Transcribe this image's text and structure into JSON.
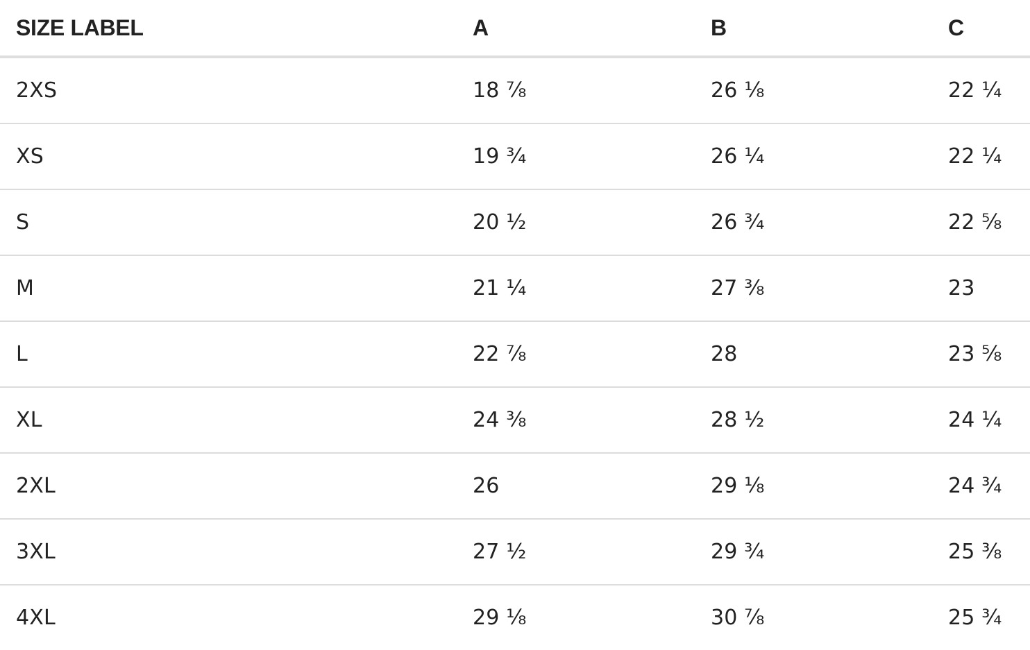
{
  "size_chart": {
    "headers": [
      "SIZE LABEL",
      "A",
      "B",
      "C"
    ],
    "rows": [
      [
        "2XS",
        "18 ⅞",
        "26 ⅛",
        "22 ¼"
      ],
      [
        "XS",
        "19 ¾",
        "26 ¼",
        "22 ¼"
      ],
      [
        "S",
        "20 ½",
        "26 ¾",
        "22 ⅝"
      ],
      [
        "M",
        "21 ¼",
        "27 ⅜",
        "23"
      ],
      [
        "L",
        "22 ⅞",
        "28",
        "23 ⅝"
      ],
      [
        "XL",
        "24 ⅜",
        "28 ½",
        "24 ¼"
      ],
      [
        "2XL",
        "26",
        "29 ⅛",
        "24 ¾"
      ],
      [
        "3XL",
        "27 ½",
        "29 ¾",
        "25 ⅜"
      ],
      [
        "4XL",
        "29 ⅛",
        "30 ⅞",
        "25 ¾"
      ]
    ]
  }
}
